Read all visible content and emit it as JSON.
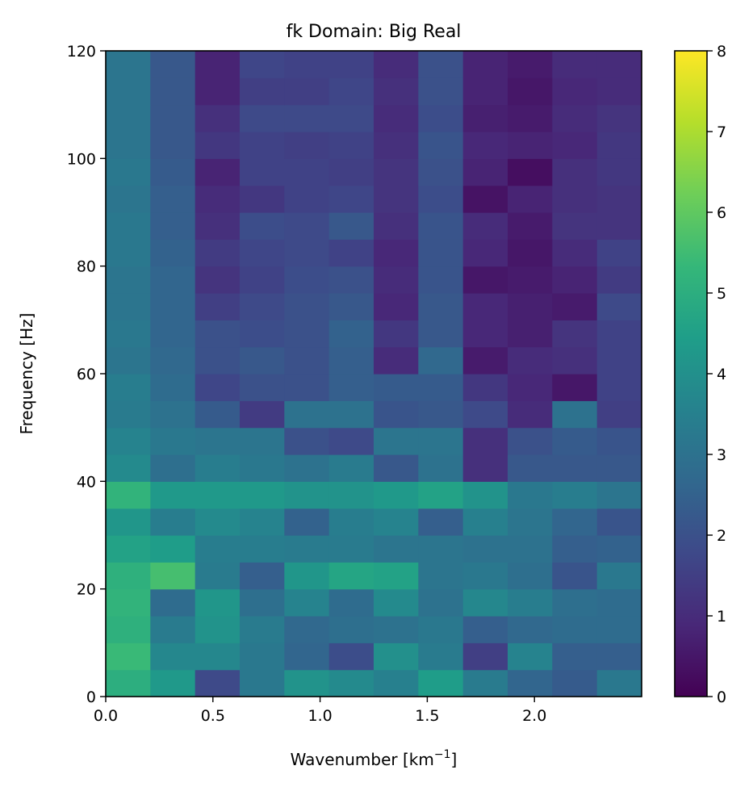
{
  "chart_data": {
    "type": "heatmap",
    "title": "fk Domain: Big Real",
    "xlabel": "Wavenumber [km",
    "xlabel_sup": "−1",
    "xlabel_close": "]",
    "ylabel": "Frequency [Hz]",
    "xlim": [
      0.0,
      2.5
    ],
    "ylim": [
      0,
      120
    ],
    "x_ticks": [
      0.0,
      0.5,
      1.0,
      1.5,
      2.0
    ],
    "x_tick_labels": [
      "0.0",
      "0.5",
      "1.0",
      "1.5",
      "2.0"
    ],
    "y_ticks": [
      0,
      20,
      40,
      60,
      80,
      100,
      120
    ],
    "y_tick_labels": [
      "0",
      "20",
      "40",
      "60",
      "80",
      "100",
      "120"
    ],
    "x_edges": [
      0.0,
      0.2083,
      0.4167,
      0.625,
      0.8333,
      1.0417,
      1.25,
      1.4583,
      1.6667,
      1.875,
      2.0833,
      2.2917,
      2.5
    ],
    "y_edges": [
      0,
      5,
      10,
      15,
      20,
      25,
      30,
      35,
      40,
      45,
      50,
      55,
      60,
      65,
      70,
      75,
      80,
      85,
      90,
      95,
      100,
      105,
      110,
      115,
      120
    ],
    "colormap": "viridis",
    "colorbar": {
      "range": [
        0,
        8
      ],
      "ticks": [
        0,
        1,
        2,
        3,
        4,
        5,
        6,
        7,
        8
      ],
      "tick_labels": [
        "0",
        "1",
        "2",
        "3",
        "4",
        "5",
        "6",
        "7",
        "8"
      ]
    },
    "grid": false,
    "values": [
      [
        5.0,
        4.3,
        1.8,
        3.2,
        4.1,
        3.8,
        3.5,
        4.4,
        3.3,
        2.6,
        2.3,
        3.2
      ],
      [
        5.4,
        3.7,
        3.7,
        3.2,
        2.6,
        1.9,
        4.0,
        3.3,
        1.5,
        3.6,
        2.4,
        2.4
      ],
      [
        5.1,
        3.3,
        4.1,
        3.3,
        2.7,
        2.9,
        3.0,
        3.2,
        2.4,
        2.7,
        2.8,
        2.8
      ],
      [
        5.2,
        2.8,
        4.2,
        2.9,
        3.6,
        2.8,
        3.8,
        3.0,
        3.7,
        3.4,
        2.9,
        2.8
      ],
      [
        5.1,
        5.6,
        3.3,
        2.4,
        4.2,
        4.7,
        4.6,
        3.1,
        3.2,
        2.9,
        2.1,
        3.2
      ],
      [
        4.6,
        4.4,
        3.4,
        3.4,
        3.3,
        3.3,
        3.1,
        3.1,
        3.0,
        3.0,
        2.4,
        2.5
      ],
      [
        4.2,
        3.4,
        3.8,
        3.6,
        2.5,
        3.4,
        3.6,
        2.4,
        3.5,
        3.1,
        2.6,
        2.1
      ],
      [
        5.2,
        4.3,
        4.3,
        4.3,
        4.1,
        4.1,
        4.3,
        4.6,
        4.1,
        3.2,
        3.4,
        3.1
      ],
      [
        3.8,
        2.9,
        3.4,
        3.2,
        3.0,
        3.3,
        2.2,
        3.0,
        1.1,
        2.2,
        2.2,
        2.2
      ],
      [
        3.6,
        3.2,
        3.1,
        3.1,
        2.0,
        1.8,
        3.1,
        3.1,
        1.1,
        2.0,
        2.3,
        2.1
      ],
      [
        3.3,
        3.0,
        2.3,
        1.4,
        3.0,
        3.0,
        2.1,
        2.2,
        1.8,
        1.0,
        3.0,
        1.5
      ],
      [
        3.4,
        2.8,
        1.7,
        2.0,
        2.0,
        2.4,
        2.3,
        2.3,
        1.3,
        0.9,
        0.5,
        1.6
      ],
      [
        3.1,
        2.7,
        2.0,
        2.2,
        2.0,
        2.4,
        1.0,
        2.7,
        0.6,
        1.0,
        1.1,
        1.6
      ],
      [
        3.2,
        2.6,
        2.0,
        1.9,
        2.0,
        2.5,
        1.3,
        2.2,
        0.9,
        0.7,
        1.2,
        1.6
      ],
      [
        3.1,
        2.6,
        1.5,
        1.8,
        2.0,
        2.2,
        0.9,
        2.2,
        0.9,
        0.7,
        0.6,
        1.8
      ],
      [
        3.1,
        2.6,
        1.2,
        1.6,
        1.9,
        2.0,
        1.0,
        2.1,
        0.5,
        0.6,
        0.8,
        1.4
      ],
      [
        3.2,
        2.5,
        1.4,
        1.7,
        1.8,
        1.6,
        0.9,
        2.1,
        0.9,
        0.5,
        1.0,
        1.6
      ],
      [
        3.2,
        2.4,
        1.1,
        1.9,
        1.8,
        2.2,
        1.1,
        2.1,
        1.0,
        0.6,
        1.2,
        1.2
      ],
      [
        3.1,
        2.4,
        1.0,
        1.3,
        1.6,
        1.7,
        1.2,
        1.9,
        0.4,
        0.8,
        1.1,
        1.2
      ],
      [
        3.2,
        2.3,
        0.8,
        1.6,
        1.6,
        1.5,
        1.2,
        2.0,
        0.8,
        0.3,
        1.1,
        1.3
      ],
      [
        3.1,
        2.2,
        1.3,
        1.6,
        1.5,
        1.6,
        1.1,
        2.1,
        0.9,
        0.8,
        0.9,
        1.3
      ],
      [
        3.1,
        2.2,
        1.1,
        1.8,
        1.8,
        1.8,
        1.0,
        1.9,
        0.7,
        0.6,
        1.0,
        1.2
      ],
      [
        3.1,
        2.2,
        0.8,
        1.5,
        1.5,
        1.7,
        1.1,
        2.0,
        0.8,
        0.5,
        0.9,
        1.0
      ],
      [
        3.1,
        2.2,
        0.8,
        1.7,
        1.6,
        1.6,
        1.0,
        2.0,
        0.8,
        0.6,
        1.0,
        1.0
      ]
    ]
  }
}
